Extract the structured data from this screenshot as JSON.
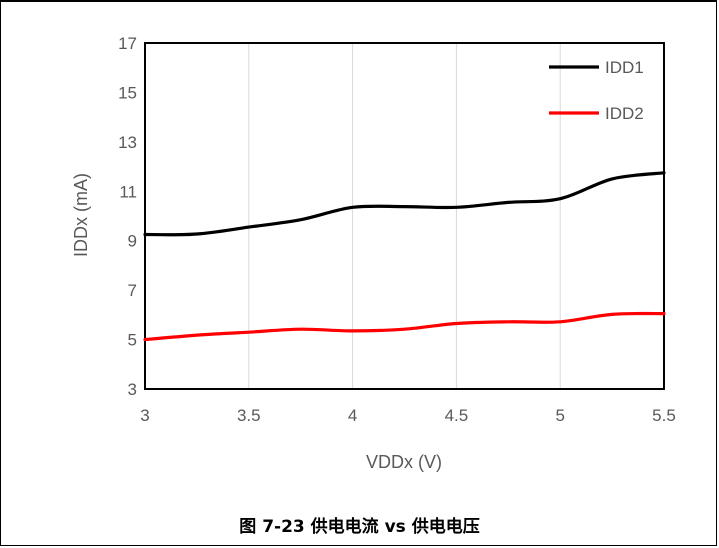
{
  "caption": "图 7-23 供电电流 vs 供电电压",
  "chart_data": {
    "type": "line",
    "title": "",
    "xlabel": "VDDx (V)",
    "ylabel": "IDDx (mA)",
    "xlim": [
      3,
      5.5
    ],
    "ylim": [
      3,
      17
    ],
    "xticks": [
      3,
      3.5,
      4,
      4.5,
      5,
      5.5
    ],
    "xtick_labels": [
      "3",
      "3.5",
      "4",
      "4.5",
      "5",
      "5.5"
    ],
    "yticks": [
      3,
      5,
      7,
      9,
      11,
      13,
      15,
      17
    ],
    "ytick_labels": [
      "3",
      "5",
      "7",
      "9",
      "11",
      "13",
      "15",
      "17"
    ],
    "grid": "vertical",
    "legend_position": "top-right",
    "x": [
      3,
      3.25,
      3.5,
      3.75,
      4,
      4.25,
      4.5,
      4.75,
      5,
      5.25,
      5.5
    ],
    "series": [
      {
        "name": "IDD1",
        "color": "#000000",
        "values": [
          9.25,
          9.27,
          9.55,
          9.85,
          10.35,
          10.38,
          10.35,
          10.55,
          10.7,
          11.5,
          11.75
        ]
      },
      {
        "name": "IDD2",
        "color": "#ff0000",
        "values": [
          5.0,
          5.18,
          5.3,
          5.42,
          5.35,
          5.42,
          5.65,
          5.72,
          5.72,
          6.02,
          6.05
        ]
      }
    ]
  }
}
